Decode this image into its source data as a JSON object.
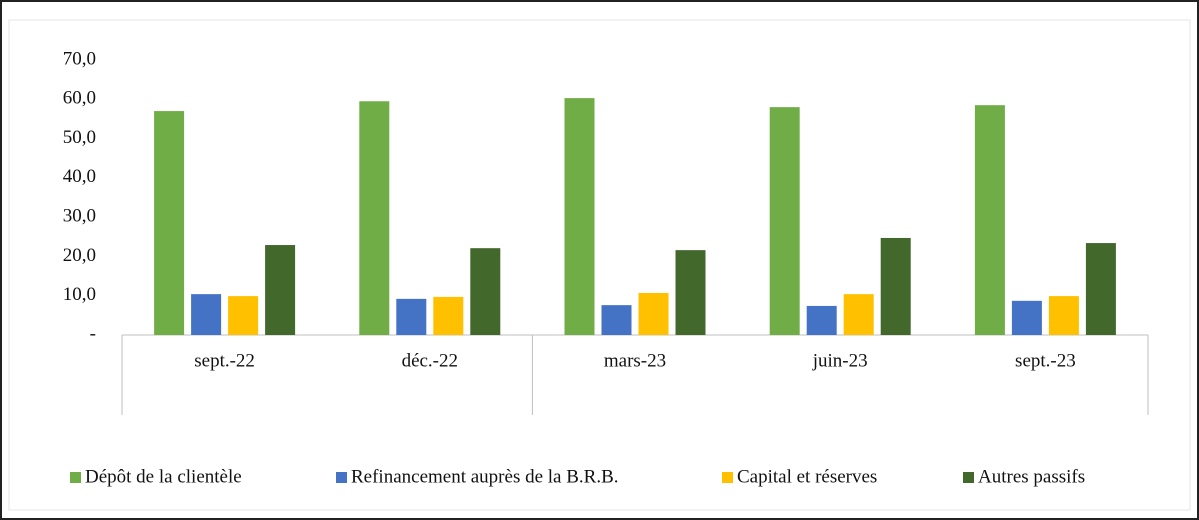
{
  "chart_data": {
    "type": "bar",
    "categories": [
      "sept.-22",
      "déc.-22",
      "mars-23",
      "juin-23",
      "sept.-23"
    ],
    "series": [
      {
        "name": "Dépôt de la clientèle",
        "color": "#70ad47",
        "values": [
          57.0,
          59.5,
          60.3,
          58.0,
          58.5
        ]
      },
      {
        "name": "Refinancement auprès de la B.R.B.",
        "color": "#4472c4",
        "values": [
          10.4,
          9.2,
          7.6,
          7.4,
          8.7
        ]
      },
      {
        "name": "Capital et réserves",
        "color": "#ffc000",
        "values": [
          9.9,
          9.7,
          10.7,
          10.4,
          9.9
        ]
      },
      {
        "name": "Autres passifs",
        "color": "#43682b",
        "values": [
          22.9,
          22.1,
          21.6,
          24.7,
          23.4
        ]
      }
    ],
    "ylim": [
      0,
      70
    ],
    "yticks": [
      {
        "value": 0,
        "label": "-"
      },
      {
        "value": 10,
        "label": "10,0"
      },
      {
        "value": 20,
        "label": "20,0"
      },
      {
        "value": 30,
        "label": "30,0"
      },
      {
        "value": 40,
        "label": "40,0"
      },
      {
        "value": 50,
        "label": "50,0"
      },
      {
        "value": 60,
        "label": "60,0"
      },
      {
        "value": 70,
        "label": "70,0"
      }
    ],
    "grid": false,
    "legend": "bottom"
  }
}
